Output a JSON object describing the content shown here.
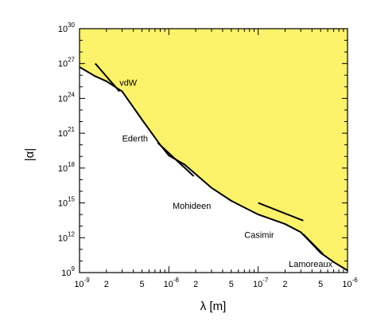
{
  "chart_data": {
    "type": "line",
    "title": "",
    "xlabel": "λ  [m]",
    "ylabel": "|α|",
    "xscale": "log",
    "yscale": "log",
    "xlim": [
      1e-09,
      1e-06
    ],
    "ylim": [
      1000000000.0,
      1e+30
    ],
    "grid": false,
    "legend": "none",
    "excluded_region_color": "#fdf36a",
    "x_tick_labels": [
      {
        "base": "10",
        "exp": "-9",
        "value": 1e-09
      },
      {
        "base": "2",
        "exp": "",
        "value": 2e-09
      },
      {
        "base": "5",
        "exp": "",
        "value": 5e-09
      },
      {
        "base": "10",
        "exp": "-8",
        "value": 1e-08
      },
      {
        "base": "2",
        "exp": "",
        "value": 2e-08
      },
      {
        "base": "5",
        "exp": "",
        "value": 5e-08
      },
      {
        "base": "10",
        "exp": "-7",
        "value": 1e-07
      },
      {
        "base": "2",
        "exp": "",
        "value": 2e-07
      },
      {
        "base": "5",
        "exp": "",
        "value": 5e-07
      },
      {
        "base": "10",
        "exp": "-6",
        "value": 1e-06
      }
    ],
    "y_tick_labels": [
      {
        "base": "10",
        "exp": "9",
        "value": 1000000000.0
      },
      {
        "base": "10",
        "exp": "12",
        "value": 1000000000000.0
      },
      {
        "base": "10",
        "exp": "15",
        "value": 1000000000000000.0
      },
      {
        "base": "10",
        "exp": "18",
        "value": 1e+18
      },
      {
        "base": "10",
        "exp": "21",
        "value": 1e+21
      },
      {
        "base": "10",
        "exp": "24",
        "value": 1e+24
      },
      {
        "base": "10",
        "exp": "27",
        "value": 1e+27
      },
      {
        "base": "10",
        "exp": "30",
        "value": 1e+30
      }
    ],
    "boundary": {
      "x": [
        1e-09,
        1.5e-09,
        2e-09,
        3e-09,
        5e-09,
        8e-09,
        1e-08,
        1.5e-08,
        2e-08,
        3e-08,
        5e-08,
        7e-08,
        1e-07,
        2e-07,
        3e-07,
        5e-07,
        7e-07,
        1e-06
      ],
      "y": [
        5e+26,
        8e+25,
        3e+25,
        4e+24,
        1.5e+22,
        1e+20,
        1.2e+19,
        2e+18,
        3e+17,
        2e+16,
        1500000000000000.0,
        400000000000000.0,
        100000000000000.0,
        15000000000000.0,
        3000000000000.0,
        50000000000.0,
        8000000000.0,
        1500000000.0
      ]
    },
    "experiments": [
      {
        "name": "vdW",
        "x": [
          1.5e-09,
          2.8e-09
        ],
        "y": [
          1e+27,
          4e+24
        ]
      },
      {
        "name": "Ederth",
        "x": [
          7.5e-09,
          1.9e-08
        ],
        "y": [
          1.5e+20,
          2e+17
        ]
      },
      {
        "name": "Mohideen",
        "x": [
          1e-07,
          3.2e-07
        ],
        "y": [
          1000000000000000.0,
          30000000000000.0
        ]
      },
      {
        "name": "Casimir",
        "x": [
          3.2e-07,
          5.3e-07
        ],
        "y": [
          2000000000000.0,
          40000000000.0
        ]
      }
    ],
    "annotations": [
      {
        "text": "vdW",
        "x": 2.8e-09,
        "y": 1.2e+25
      },
      {
        "text": "Ederth",
        "x": 3e-09,
        "y": 2e+20
      },
      {
        "text": "Mohideen",
        "x": 1.1e-08,
        "y": 300000000000000.0
      },
      {
        "text": "Casimir",
        "x": 7e-08,
        "y": 1000000000000.0
      },
      {
        "text": "Lamoreaux",
        "x": 2.2e-07,
        "y": 3000000000.0
      }
    ]
  }
}
